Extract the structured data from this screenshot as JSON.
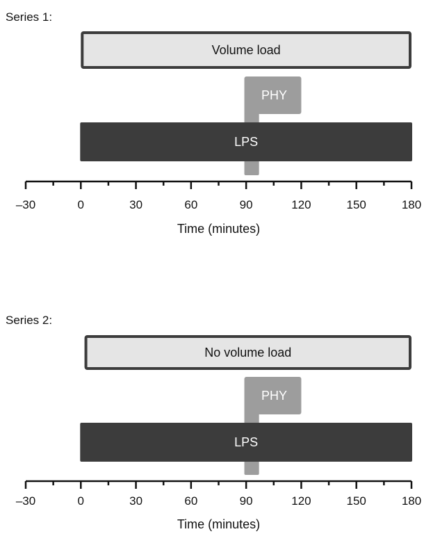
{
  "colors": {
    "light_bar_fill": "#e5e5e5",
    "light_bar_stroke": "#3c3c3c",
    "dark_bar": "#3c3c3c",
    "phy_bar": "#9d9d9d",
    "axis": "#111111",
    "text_dark": "#111111",
    "text_light": "#ffffff"
  },
  "axis_ticks": [
    -30,
    0,
    30,
    60,
    90,
    120,
    150,
    180
  ],
  "axis_tick_labels": [
    "–30",
    "0",
    "30",
    "60",
    "90",
    "120",
    "150",
    "180"
  ],
  "series": [
    {
      "title": "Series 1:",
      "top_bar": {
        "label": "Volume load",
        "start": 0,
        "end": 180
      },
      "phy": {
        "label": "PHY",
        "start": 89,
        "end": 120,
        "stem_end": 97
      },
      "lps": {
        "label": "LPS",
        "start": 0,
        "end": 180
      },
      "xlabel": "Time (minutes)"
    },
    {
      "title": "Series 2:",
      "top_bar": {
        "label": "No volume load",
        "start": 2,
        "end": 180
      },
      "phy": {
        "label": "PHY",
        "start": 89,
        "end": 120,
        "stem_end": 97
      },
      "lps": {
        "label": "LPS",
        "start": 0,
        "end": 180
      },
      "xlabel": "Time (minutes)"
    }
  ]
}
